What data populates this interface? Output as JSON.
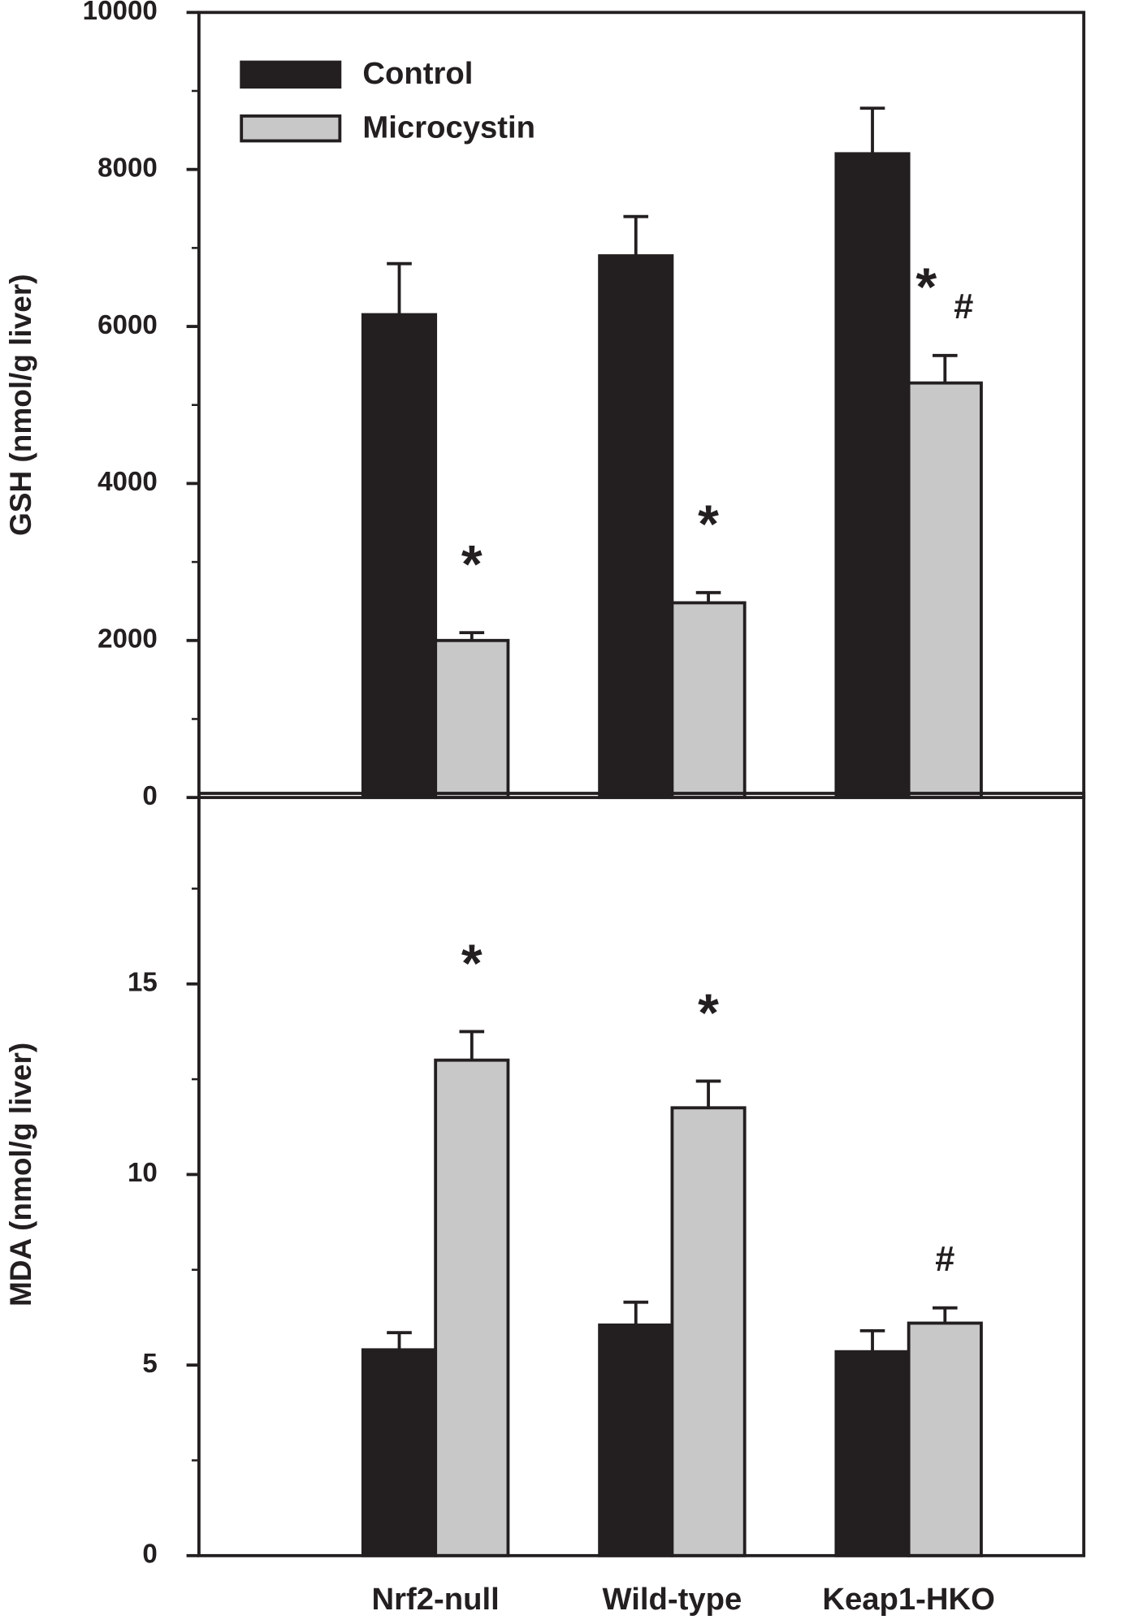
{
  "chart_data": [
    {
      "type": "bar",
      "y_label": "GSH (nmol/g liver)",
      "ylim": [
        0,
        10000
      ],
      "yticks": [
        0,
        2000,
        4000,
        6000,
        8000,
        10000
      ],
      "minor_yticks": [
        1000,
        3000,
        5000,
        7000,
        9000
      ],
      "legend": "upper left",
      "series": [
        {
          "name": "Control",
          "color": "#231f20",
          "values": [
            6150,
            6900,
            8200
          ],
          "errors": [
            650,
            500,
            580
          ]
        },
        {
          "name": "Microcystin",
          "color": "#c8c8c8",
          "values": [
            2000,
            2480,
            5280
          ],
          "errors": [
            100,
            130,
            350
          ]
        }
      ],
      "annotations": [
        {
          "text": "*",
          "series": 1,
          "category": 0
        },
        {
          "text": "*",
          "series": 1,
          "category": 1
        },
        {
          "text": "*",
          "series": 1,
          "category": 2
        },
        {
          "text": "#",
          "series": 1,
          "category": 2
        }
      ]
    },
    {
      "type": "bar",
      "y_label": "MDA (nmol/g liver)",
      "categories": [
        "Nrf2-null",
        "Wild-type",
        "Keap1-HKO"
      ],
      "ylim": [
        0,
        20
      ],
      "yticks": [
        0,
        5,
        10,
        15
      ],
      "minor_yticks": [
        2.5,
        7.5,
        12.5,
        17.5
      ],
      "series": [
        {
          "color": "#231f20",
          "values": [
            5.4,
            6.05,
            5.35
          ],
          "errors": [
            0.45,
            0.6,
            0.55
          ]
        },
        {
          "color": "#c8c8c8",
          "values": [
            13.0,
            11.75,
            6.1
          ],
          "errors": [
            0.75,
            0.7,
            0.4
          ]
        }
      ],
      "annotations": [
        {
          "text": "*",
          "series": 1,
          "category": 0
        },
        {
          "text": "*",
          "series": 1,
          "category": 1
        },
        {
          "text": "#",
          "series": 1,
          "category": 2
        }
      ]
    }
  ]
}
